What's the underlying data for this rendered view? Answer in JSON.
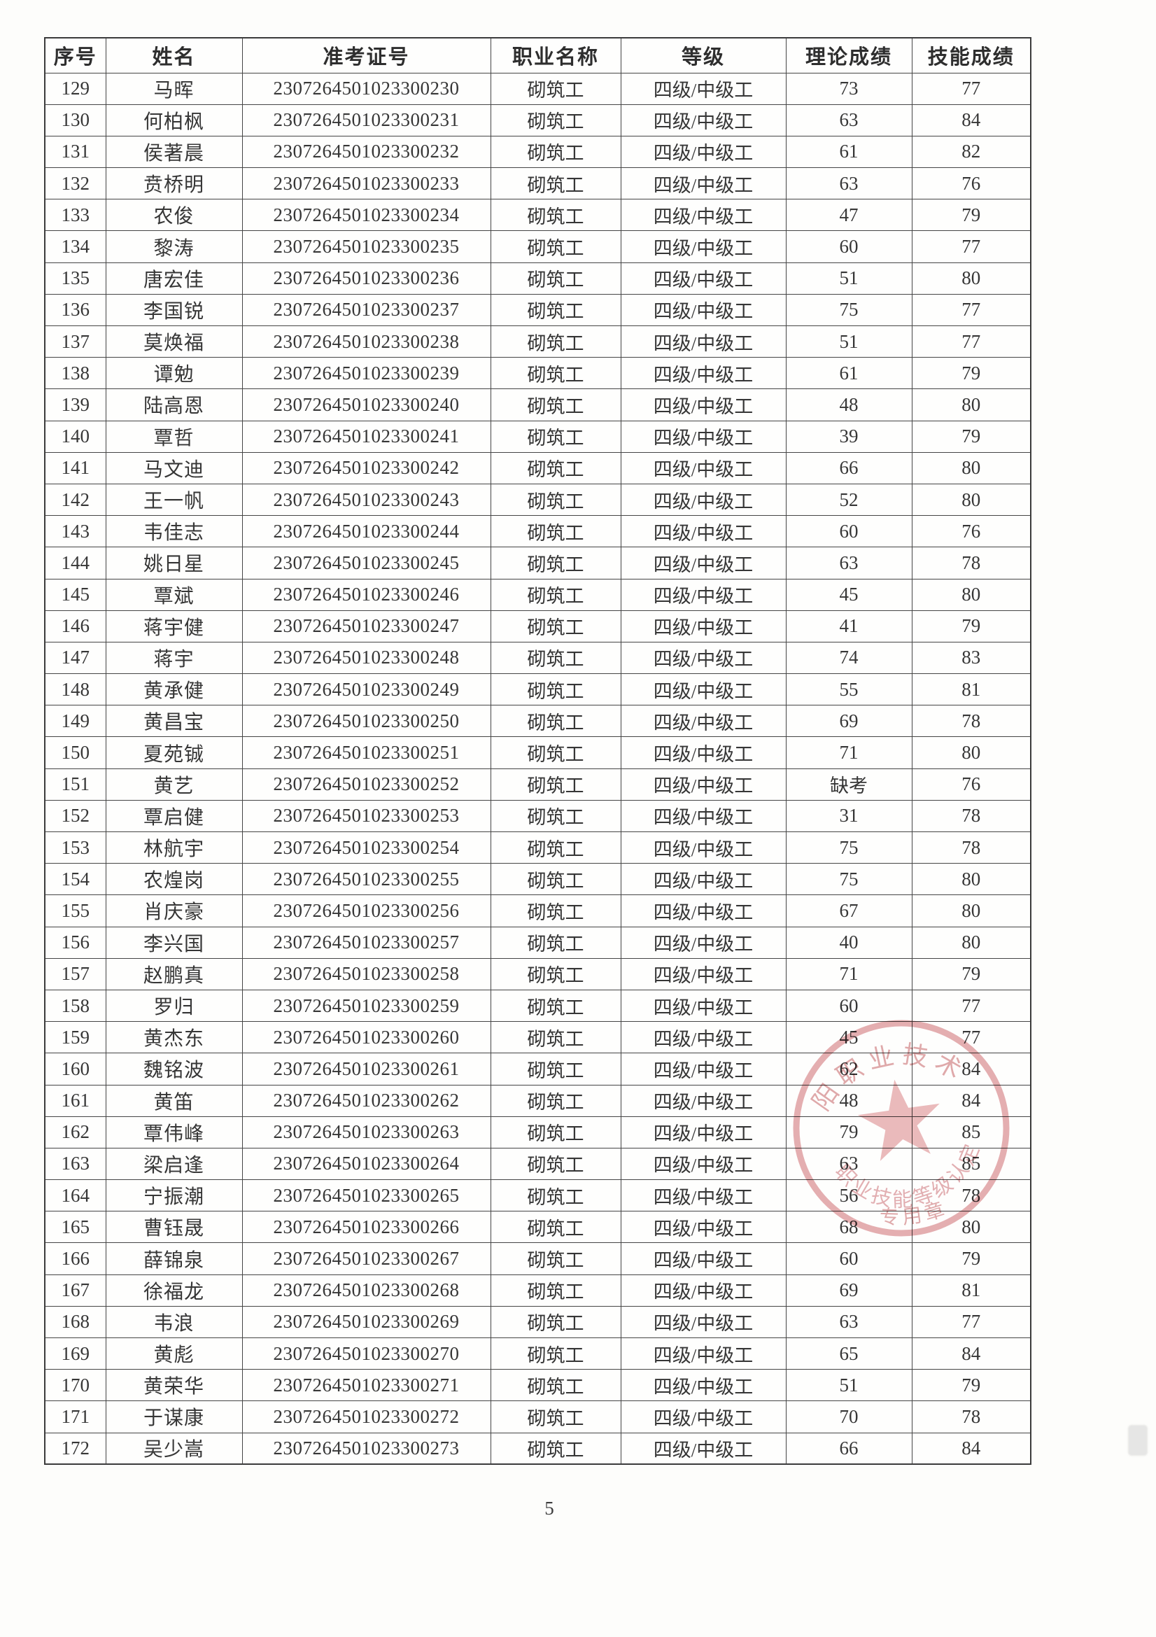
{
  "page": {
    "number": "5"
  },
  "table": {
    "headers": [
      "序号",
      "姓名",
      "准考证号",
      "职业名称",
      "等级",
      "理论成绩",
      "技能成绩"
    ],
    "rows": [
      [
        "129",
        "马晖",
        "2307264501023300230",
        "砌筑工",
        "四级/中级工",
        "73",
        "77"
      ],
      [
        "130",
        "何柏枫",
        "2307264501023300231",
        "砌筑工",
        "四级/中级工",
        "63",
        "84"
      ],
      [
        "131",
        "侯著晨",
        "2307264501023300232",
        "砌筑工",
        "四级/中级工",
        "61",
        "82"
      ],
      [
        "132",
        "贲桥明",
        "2307264501023300233",
        "砌筑工",
        "四级/中级工",
        "63",
        "76"
      ],
      [
        "133",
        "农俊",
        "2307264501023300234",
        "砌筑工",
        "四级/中级工",
        "47",
        "79"
      ],
      [
        "134",
        "黎涛",
        "2307264501023300235",
        "砌筑工",
        "四级/中级工",
        "60",
        "77"
      ],
      [
        "135",
        "唐宏佳",
        "2307264501023300236",
        "砌筑工",
        "四级/中级工",
        "51",
        "80"
      ],
      [
        "136",
        "李国锐",
        "2307264501023300237",
        "砌筑工",
        "四级/中级工",
        "75",
        "77"
      ],
      [
        "137",
        "莫焕福",
        "2307264501023300238",
        "砌筑工",
        "四级/中级工",
        "51",
        "77"
      ],
      [
        "138",
        "谭勉",
        "2307264501023300239",
        "砌筑工",
        "四级/中级工",
        "61",
        "79"
      ],
      [
        "139",
        "陆高恩",
        "2307264501023300240",
        "砌筑工",
        "四级/中级工",
        "48",
        "80"
      ],
      [
        "140",
        "覃哲",
        "2307264501023300241",
        "砌筑工",
        "四级/中级工",
        "39",
        "79"
      ],
      [
        "141",
        "马文迪",
        "2307264501023300242",
        "砌筑工",
        "四级/中级工",
        "66",
        "80"
      ],
      [
        "142",
        "王一帆",
        "2307264501023300243",
        "砌筑工",
        "四级/中级工",
        "52",
        "80"
      ],
      [
        "143",
        "韦佳志",
        "2307264501023300244",
        "砌筑工",
        "四级/中级工",
        "60",
        "76"
      ],
      [
        "144",
        "姚日星",
        "2307264501023300245",
        "砌筑工",
        "四级/中级工",
        "63",
        "78"
      ],
      [
        "145",
        "覃斌",
        "2307264501023300246",
        "砌筑工",
        "四级/中级工",
        "45",
        "80"
      ],
      [
        "146",
        "蒋宇健",
        "2307264501023300247",
        "砌筑工",
        "四级/中级工",
        "41",
        "79"
      ],
      [
        "147",
        "蒋宇",
        "2307264501023300248",
        "砌筑工",
        "四级/中级工",
        "74",
        "83"
      ],
      [
        "148",
        "黄承健",
        "2307264501023300249",
        "砌筑工",
        "四级/中级工",
        "55",
        "81"
      ],
      [
        "149",
        "黄昌宝",
        "2307264501023300250",
        "砌筑工",
        "四级/中级工",
        "69",
        "78"
      ],
      [
        "150",
        "夏苑铖",
        "2307264501023300251",
        "砌筑工",
        "四级/中级工",
        "71",
        "80"
      ],
      [
        "151",
        "黄艺",
        "2307264501023300252",
        "砌筑工",
        "四级/中级工",
        "缺考",
        "76"
      ],
      [
        "152",
        "覃启健",
        "2307264501023300253",
        "砌筑工",
        "四级/中级工",
        "31",
        "78"
      ],
      [
        "153",
        "林航宇",
        "2307264501023300254",
        "砌筑工",
        "四级/中级工",
        "75",
        "78"
      ],
      [
        "154",
        "农煌岗",
        "2307264501023300255",
        "砌筑工",
        "四级/中级工",
        "75",
        "80"
      ],
      [
        "155",
        "肖庆豪",
        "2307264501023300256",
        "砌筑工",
        "四级/中级工",
        "67",
        "80"
      ],
      [
        "156",
        "李兴国",
        "2307264501023300257",
        "砌筑工",
        "四级/中级工",
        "40",
        "80"
      ],
      [
        "157",
        "赵鹏真",
        "2307264501023300258",
        "砌筑工",
        "四级/中级工",
        "71",
        "79"
      ],
      [
        "158",
        "罗归",
        "2307264501023300259",
        "砌筑工",
        "四级/中级工",
        "60",
        "77"
      ],
      [
        "159",
        "黄杰东",
        "2307264501023300260",
        "砌筑工",
        "四级/中级工",
        "45",
        "77"
      ],
      [
        "160",
        "魏铭波",
        "2307264501023300261",
        "砌筑工",
        "四级/中级工",
        "62",
        "84"
      ],
      [
        "161",
        "黄笛",
        "2307264501023300262",
        "砌筑工",
        "四级/中级工",
        "48",
        "84"
      ],
      [
        "162",
        "覃伟峰",
        "2307264501023300263",
        "砌筑工",
        "四级/中级工",
        "79",
        "85"
      ],
      [
        "163",
        "梁启逢",
        "2307264501023300264",
        "砌筑工",
        "四级/中级工",
        "63",
        "85"
      ],
      [
        "164",
        "宁振潮",
        "2307264501023300265",
        "砌筑工",
        "四级/中级工",
        "56",
        "78"
      ],
      [
        "165",
        "曹钰晟",
        "2307264501023300266",
        "砌筑工",
        "四级/中级工",
        "68",
        "80"
      ],
      [
        "166",
        "薛锦泉",
        "2307264501023300267",
        "砌筑工",
        "四级/中级工",
        "60",
        "79"
      ],
      [
        "167",
        "徐福龙",
        "2307264501023300268",
        "砌筑工",
        "四级/中级工",
        "69",
        "81"
      ],
      [
        "168",
        "韦浪",
        "2307264501023300269",
        "砌筑工",
        "四级/中级工",
        "63",
        "77"
      ],
      [
        "169",
        "黄彪",
        "2307264501023300270",
        "砌筑工",
        "四级/中级工",
        "65",
        "84"
      ],
      [
        "170",
        "黄荣华",
        "2307264501023300271",
        "砌筑工",
        "四级/中级工",
        "51",
        "79"
      ],
      [
        "171",
        "于谋康",
        "2307264501023300272",
        "砌筑工",
        "四级/中级工",
        "70",
        "78"
      ],
      [
        "172",
        "吴少嵩",
        "2307264501023300273",
        "砌筑工",
        "四级/中级工",
        "66",
        "84"
      ]
    ]
  },
  "stamp": {
    "top_arc_text": "阳职业技术",
    "mid_arc_text": "职业技能等级认定",
    "bottom_text": "专用章",
    "color": "#c2565c"
  }
}
